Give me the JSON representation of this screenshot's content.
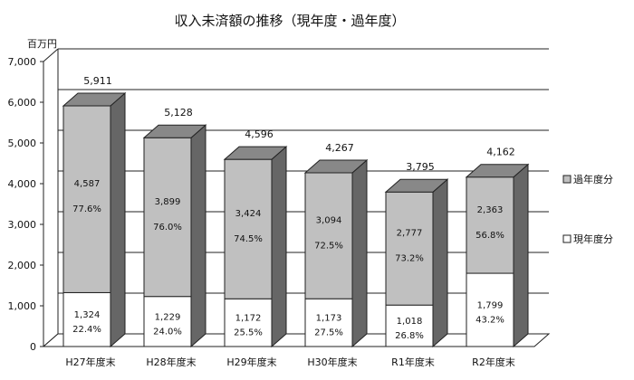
{
  "chart_data": {
    "type": "bar",
    "stacked": true,
    "title": "収入未済額の推移（現年度・過年度）",
    "ylabel": "百万円",
    "ylim": [
      0,
      7000
    ],
    "yticks": [
      0,
      1000,
      2000,
      3000,
      4000,
      5000,
      6000,
      7000
    ],
    "ytick_labels": [
      "0",
      "1,000",
      "2,000",
      "3,000",
      "4,000",
      "5,000",
      "6,000",
      "7,000"
    ],
    "grid": true,
    "legend_position": "right",
    "categories": [
      "H27年度末",
      "H28年度末",
      "H29年度末",
      "H30年度末",
      "R1年度末",
      "R2年度末"
    ],
    "totals": [
      5911,
      5128,
      4596,
      4267,
      3795,
      4162
    ],
    "total_labels": [
      "5,911",
      "5,128",
      "4,596",
      "4,267",
      "3,795",
      "4,162"
    ],
    "series": [
      {
        "name": "現年度分",
        "color": "#ffffff",
        "values": [
          1324,
          1229,
          1172,
          1173,
          1018,
          1799
        ],
        "value_labels": [
          "1,324",
          "1,229",
          "1,172",
          "1,173",
          "1,018",
          "1,799"
        ],
        "percent_labels": [
          "22.4%",
          "24.0%",
          "25.5%",
          "27.5%",
          "26.8%",
          "43.2%"
        ]
      },
      {
        "name": "過年度分",
        "color": "#c0c0c0",
        "values": [
          4587,
          3899,
          3424,
          3094,
          2777,
          2363
        ],
        "value_labels": [
          "4,587",
          "3,899",
          "3,424",
          "3,094",
          "2,777",
          "2,363"
        ],
        "percent_labels": [
          "77.6%",
          "76.0%",
          "74.5%",
          "72.5%",
          "73.2%",
          "56.8%"
        ]
      }
    ]
  }
}
